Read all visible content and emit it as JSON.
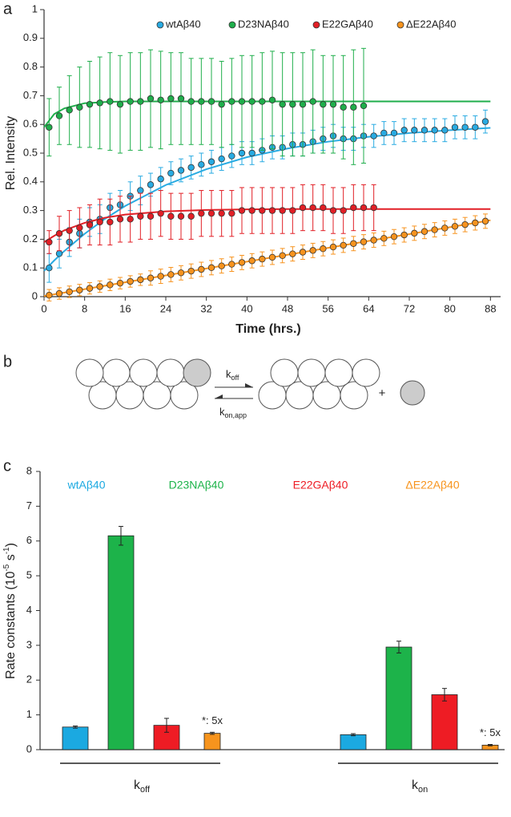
{
  "panels": [
    "a",
    "b",
    "c"
  ],
  "diagram": {
    "forward": {
      "symbol": "k",
      "subscript": "off"
    },
    "backward": {
      "symbol": "k",
      "subscript": "on,app"
    },
    "plus": "+"
  },
  "chart_data": [
    {
      "type": "scatter",
      "xlabel": "Time (hrs.)",
      "ylabel": "Rel. Intensity",
      "xlim": [
        0,
        90
      ],
      "ylim": [
        0,
        1
      ],
      "xticks": [
        0,
        8,
        16,
        24,
        32,
        40,
        48,
        56,
        64,
        72,
        80,
        88
      ],
      "yticks": [
        0,
        0.1,
        0.2,
        0.3,
        0.4,
        0.5,
        0.6,
        0.7,
        0.8,
        0.9,
        1
      ],
      "legend": "top",
      "series": [
        {
          "name": "wtAβ40",
          "color": "#29abe2",
          "x": [
            1,
            3,
            5,
            7,
            9,
            11,
            13,
            15,
            17,
            19,
            21,
            23,
            25,
            27,
            29,
            31,
            33,
            35,
            37,
            39,
            41,
            43,
            45,
            47,
            49,
            51,
            53,
            55,
            57,
            59,
            61,
            63,
            65,
            67,
            69,
            71,
            73,
            75,
            77,
            79,
            81,
            83,
            85,
            87
          ],
          "values": [
            0.1,
            0.15,
            0.19,
            0.22,
            0.26,
            0.27,
            0.31,
            0.32,
            0.35,
            0.37,
            0.39,
            0.41,
            0.43,
            0.44,
            0.45,
            0.46,
            0.47,
            0.48,
            0.49,
            0.5,
            0.5,
            0.51,
            0.52,
            0.52,
            0.53,
            0.53,
            0.54,
            0.55,
            0.56,
            0.55,
            0.55,
            0.56,
            0.56,
            0.57,
            0.57,
            0.58,
            0.58,
            0.58,
            0.58,
            0.58,
            0.59,
            0.59,
            0.59,
            0.61
          ],
          "errors": [
            0.05,
            0.05,
            0.05,
            0.05,
            0.05,
            0.05,
            0.05,
            0.05,
            0.05,
            0.05,
            0.04,
            0.04,
            0.04,
            0.04,
            0.04,
            0.04,
            0.04,
            0.04,
            0.04,
            0.04,
            0.04,
            0.04,
            0.04,
            0.04,
            0.04,
            0.04,
            0.04,
            0.04,
            0.04,
            0.04,
            0.04,
            0.04,
            0.04,
            0.04,
            0.04,
            0.04,
            0.04,
            0.04,
            0.04,
            0.04,
            0.04,
            0.04,
            0.04,
            0.04
          ],
          "fit_x": [
            0,
            2,
            4,
            8,
            12,
            16,
            24,
            32,
            40,
            48,
            56,
            64,
            72,
            80,
            88
          ],
          "fit": [
            0.09,
            0.126,
            0.159,
            0.219,
            0.271,
            0.316,
            0.389,
            0.444,
            0.486,
            0.516,
            0.54,
            0.557,
            0.57,
            0.58,
            0.588
          ]
        },
        {
          "name": "D23NAβ40",
          "color": "#1fae4b",
          "x": [
            1,
            3,
            5,
            7,
            9,
            11,
            13,
            15,
            17,
            19,
            21,
            23,
            25,
            27,
            29,
            31,
            33,
            35,
            37,
            39,
            41,
            43,
            45,
            47,
            49,
            51,
            53,
            55,
            57,
            59,
            61,
            63
          ],
          "values": [
            0.59,
            0.63,
            0.65,
            0.66,
            0.67,
            0.675,
            0.68,
            0.67,
            0.68,
            0.68,
            0.69,
            0.685,
            0.69,
            0.69,
            0.68,
            0.68,
            0.68,
            0.67,
            0.68,
            0.68,
            0.68,
            0.68,
            0.685,
            0.67,
            0.67,
            0.67,
            0.68,
            0.67,
            0.67,
            0.66,
            0.66,
            0.665
          ],
          "errors": [
            0.1,
            0.1,
            0.12,
            0.14,
            0.15,
            0.16,
            0.17,
            0.17,
            0.17,
            0.17,
            0.17,
            0.17,
            0.16,
            0.16,
            0.15,
            0.15,
            0.15,
            0.15,
            0.15,
            0.16,
            0.16,
            0.17,
            0.17,
            0.18,
            0.18,
            0.18,
            0.18,
            0.17,
            0.17,
            0.18,
            0.2,
            0.2
          ],
          "fit_x": [
            0,
            2,
            4,
            8,
            12,
            16,
            24,
            32,
            40,
            48,
            56,
            64,
            72,
            80,
            88
          ],
          "fit": [
            0.59,
            0.636,
            0.656,
            0.674,
            0.678,
            0.68,
            0.68,
            0.68,
            0.68,
            0.68,
            0.68,
            0.68,
            0.68,
            0.68,
            0.68
          ]
        },
        {
          "name": "E22GAβ40",
          "color": "#e21f26",
          "x": [
            1,
            3,
            5,
            7,
            9,
            11,
            13,
            15,
            17,
            19,
            21,
            23,
            25,
            27,
            29,
            31,
            33,
            35,
            37,
            39,
            41,
            43,
            45,
            47,
            49,
            51,
            53,
            55,
            57,
            59,
            61,
            63,
            65
          ],
          "values": [
            0.19,
            0.22,
            0.23,
            0.24,
            0.25,
            0.26,
            0.26,
            0.27,
            0.27,
            0.28,
            0.28,
            0.29,
            0.28,
            0.28,
            0.28,
            0.29,
            0.29,
            0.29,
            0.29,
            0.3,
            0.3,
            0.3,
            0.3,
            0.3,
            0.3,
            0.31,
            0.31,
            0.31,
            0.3,
            0.3,
            0.31,
            0.31,
            0.31
          ],
          "errors": [
            0.04,
            0.06,
            0.07,
            0.07,
            0.07,
            0.08,
            0.08,
            0.08,
            0.08,
            0.08,
            0.08,
            0.08,
            0.08,
            0.08,
            0.08,
            0.08,
            0.08,
            0.08,
            0.08,
            0.08,
            0.08,
            0.08,
            0.08,
            0.08,
            0.08,
            0.08,
            0.08,
            0.08,
            0.08,
            0.08,
            0.08,
            0.08,
            0.08
          ],
          "fit_x": [
            0,
            2,
            4,
            8,
            12,
            16,
            24,
            32,
            40,
            48,
            56,
            64,
            72,
            80,
            88
          ],
          "fit": [
            0.19,
            0.212,
            0.231,
            0.257,
            0.275,
            0.286,
            0.297,
            0.302,
            0.304,
            0.305,
            0.305,
            0.305,
            0.305,
            0.305,
            0.305
          ]
        },
        {
          "name": "ΔE22Aβ40",
          "color": "#f7931e",
          "x": [
            1,
            3,
            5,
            7,
            9,
            11,
            13,
            15,
            17,
            19,
            21,
            23,
            25,
            27,
            29,
            31,
            33,
            35,
            37,
            39,
            41,
            43,
            45,
            47,
            49,
            51,
            53,
            55,
            57,
            59,
            61,
            63,
            65,
            67,
            69,
            71,
            73,
            75,
            77,
            79,
            81,
            83,
            85,
            87
          ],
          "values": [
            0.005,
            0.011,
            0.017,
            0.023,
            0.029,
            0.035,
            0.041,
            0.047,
            0.053,
            0.059,
            0.065,
            0.071,
            0.077,
            0.083,
            0.089,
            0.095,
            0.101,
            0.107,
            0.113,
            0.119,
            0.125,
            0.131,
            0.137,
            0.143,
            0.149,
            0.155,
            0.161,
            0.167,
            0.173,
            0.179,
            0.185,
            0.191,
            0.197,
            0.203,
            0.209,
            0.215,
            0.221,
            0.227,
            0.233,
            0.239,
            0.245,
            0.251,
            0.257,
            0.263
          ],
          "errors": [
            0.02,
            0.02,
            0.02,
            0.02,
            0.02,
            0.02,
            0.02,
            0.02,
            0.02,
            0.02,
            0.025,
            0.025,
            0.025,
            0.025,
            0.025,
            0.025,
            0.025,
            0.025,
            0.025,
            0.025,
            0.025,
            0.025,
            0.025,
            0.025,
            0.025,
            0.025,
            0.025,
            0.025,
            0.025,
            0.025,
            0.025,
            0.025,
            0.025,
            0.025,
            0.025,
            0.025,
            0.025,
            0.025,
            0.025,
            0.025,
            0.025,
            0.025,
            0.025,
            0.025
          ],
          "fit_x": [
            0,
            88
          ],
          "fit": [
            0.002,
            0.266
          ]
        }
      ]
    },
    {
      "type": "bar",
      "ylabel": [
        "Rate constants (10",
        "-5",
        " s",
        "-1",
        ")"
      ],
      "categories": [
        {
          "symbol": "k",
          "subscript": "off"
        },
        {
          "symbol": "k",
          "subscript": "on"
        }
      ],
      "ylim": [
        0,
        8
      ],
      "yticks": [
        0,
        1,
        2,
        3,
        4,
        5,
        6,
        7,
        8
      ],
      "legend": "top",
      "series": [
        {
          "name": "wtAβ40",
          "color": "#1ba9e1",
          "values": [
            0.65,
            0.43
          ],
          "errors": [
            0.03,
            0.03
          ]
        },
        {
          "name": "D23NAβ40",
          "color": "#1db34a",
          "values": [
            6.15,
            2.95
          ],
          "errors": [
            0.27,
            0.17
          ]
        },
        {
          "name": "E22GAβ40",
          "color": "#ee1c24",
          "values": [
            0.7,
            1.58
          ],
          "errors": [
            0.2,
            0.18
          ]
        },
        {
          "name": "ΔE22Aβ40",
          "color": "#f7941d",
          "values": [
            0.47,
            0.13
          ],
          "errors": [
            0.03,
            0.02
          ],
          "annotations": [
            "*: 5x",
            "*: 5x"
          ]
        }
      ]
    }
  ]
}
